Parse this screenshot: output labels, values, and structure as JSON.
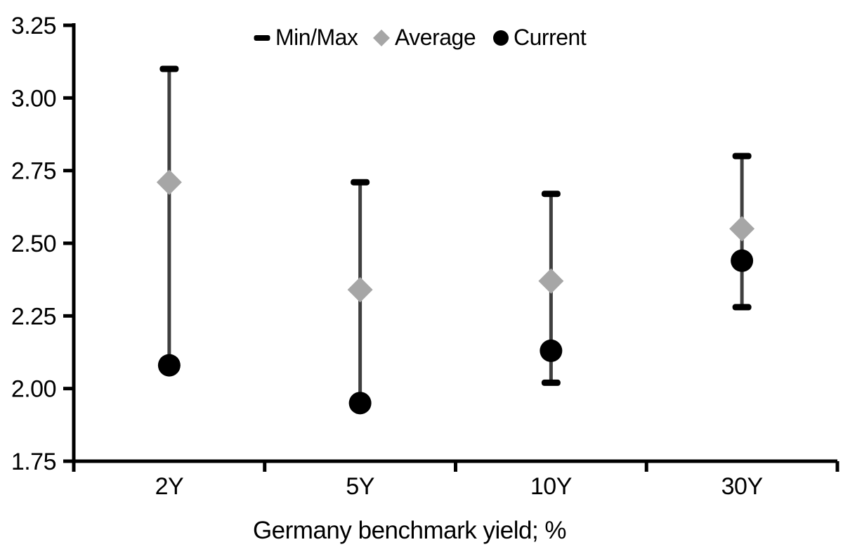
{
  "chart_data": {
    "type": "scatter",
    "subtype": "min-max-range-with-markers",
    "title": "",
    "xlabel": "Germany benchmark yield; %",
    "ylabel": "",
    "categories": [
      "2Y",
      "5Y",
      "10Y",
      "30Y"
    ],
    "series": [
      {
        "name": "Min/Max",
        "marker": "dash",
        "min": [
          2.08,
          1.95,
          2.02,
          2.28
        ],
        "max": [
          3.1,
          2.71,
          2.67,
          2.8
        ]
      },
      {
        "name": "Average",
        "marker": "diamond",
        "values": [
          2.71,
          2.34,
          2.37,
          2.55
        ]
      },
      {
        "name": "Current",
        "marker": "circle",
        "values": [
          2.08,
          1.95,
          2.13,
          2.44
        ]
      }
    ],
    "ylim": [
      1.75,
      3.25
    ],
    "ytick_step": 0.25,
    "ytick_labels": [
      "3.25",
      "3.00",
      "2.75",
      "2.50",
      "2.25",
      "2.00",
      "1.75"
    ],
    "xtick_labels": [
      "2Y",
      "5Y",
      "10Y",
      "30Y"
    ],
    "grid": false,
    "legend_position": "top-center"
  },
  "legend": {
    "items": [
      {
        "label": "Min/Max",
        "marker": "dash-icon"
      },
      {
        "label": "Average",
        "marker": "diamond-icon"
      },
      {
        "label": "Current",
        "marker": "circle-icon"
      }
    ]
  },
  "colors": {
    "background": "#FFFFFF",
    "axis": "#000000",
    "text": "#000000",
    "range_line": "#3F3F3F",
    "min_max_cap": "#000000",
    "average_marker": "#A6A6A6",
    "current_marker": "#000000"
  }
}
